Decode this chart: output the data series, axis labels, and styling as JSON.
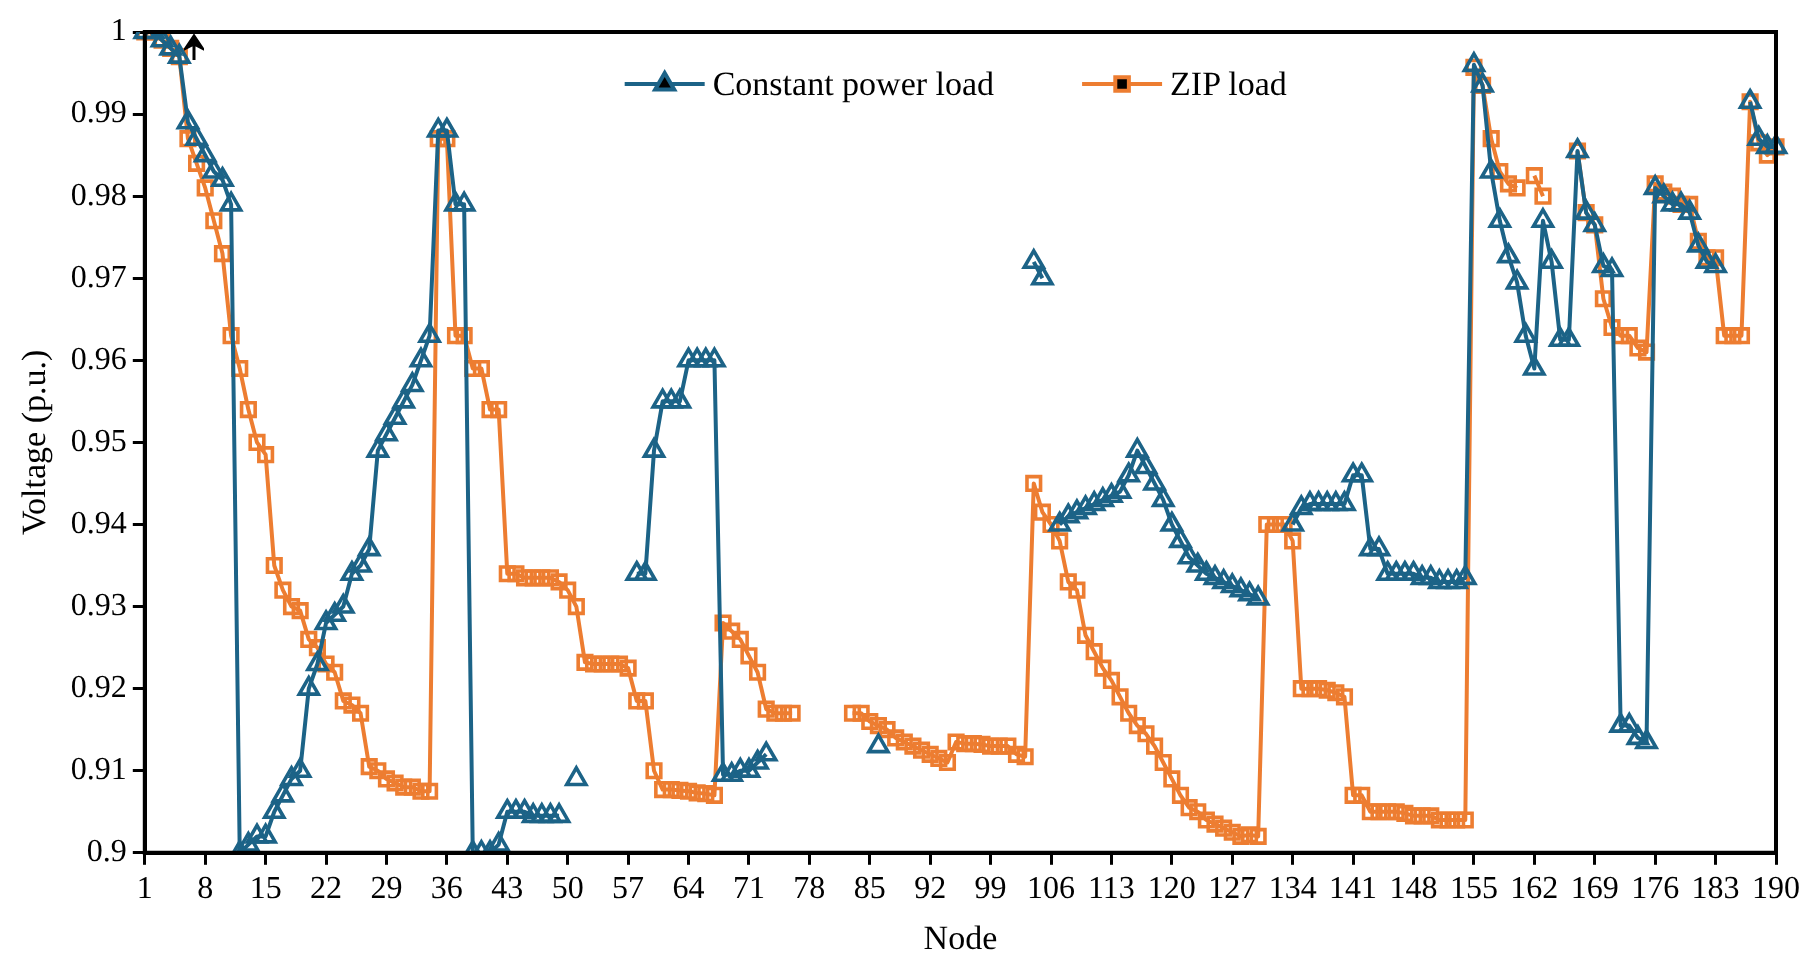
{
  "chart_data": {
    "type": "line",
    "xlabel": "Node",
    "ylabel": "Voltage (p.u.)",
    "categories": [
      "1",
      null,
      null,
      null,
      null,
      null,
      null,
      "8",
      null,
      null,
      null,
      null,
      null,
      null,
      "15",
      null,
      null,
      null,
      null,
      null,
      null,
      "22",
      null,
      null,
      null,
      null,
      null,
      null,
      "29",
      null,
      null,
      null,
      null,
      null,
      null,
      "36",
      null,
      null,
      null,
      null,
      null,
      null,
      "43",
      null,
      null,
      null,
      null,
      null,
      null,
      "50",
      null,
      null,
      null,
      null,
      null,
      null,
      "57",
      null,
      null,
      null,
      null,
      null,
      null,
      "64",
      null,
      null,
      null,
      null,
      null,
      null,
      "71",
      null,
      null,
      null,
      null,
      null,
      null,
      "78",
      null,
      null,
      null,
      null,
      null,
      null,
      "85",
      null,
      null,
      null,
      null,
      null,
      null,
      "92",
      null,
      null,
      null,
      null,
      null,
      null,
      "99",
      null,
      null,
      null,
      null,
      null,
      null,
      "106",
      null,
      null,
      null,
      null,
      null,
      null,
      "113",
      null,
      null,
      null,
      null,
      null,
      null,
      "120",
      null,
      null,
      null,
      null,
      null,
      null,
      "127",
      null,
      null,
      null,
      null,
      null,
      null,
      "134",
      null,
      null,
      null,
      null,
      null,
      null,
      "141",
      null,
      null,
      null,
      null,
      null,
      null,
      "148",
      null,
      null,
      null,
      null,
      null,
      null,
      "155",
      null,
      null,
      null,
      null,
      null,
      null,
      "162",
      null,
      null,
      null,
      null,
      null,
      null,
      "169",
      null,
      null,
      null,
      null,
      null,
      null,
      "176",
      null,
      null,
      null,
      null,
      null,
      null,
      "183",
      null,
      null,
      null,
      null,
      null,
      null,
      "190"
    ],
    "series": [
      {
        "name": "Constant power load",
        "color": "#1c6387",
        "marker": "triangle",
        "values": [
          1.0,
          1.0,
          0.999,
          0.998,
          0.997,
          0.989,
          0.987,
          0.985,
          0.983,
          0.982,
          0.979,
          0.9,
          0.901,
          0.902,
          0.902,
          0.905,
          0.907,
          0.909,
          0.91,
          0.92,
          0.923,
          0.928,
          0.929,
          0.93,
          0.934,
          0.935,
          0.937,
          0.949,
          0.951,
          0.953,
          0.955,
          0.957,
          0.96,
          0.963,
          0.988,
          0.988,
          0.979,
          0.979,
          0.9,
          0.9,
          0.9,
          0.901,
          0.905,
          0.905,
          0.905,
          0.9045,
          0.9045,
          0.9045,
          0.9045,
          null,
          0.909,
          null,
          null,
          null,
          null,
          null,
          null,
          0.934,
          0.934,
          0.949,
          0.955,
          0.955,
          0.955,
          0.96,
          0.96,
          0.96,
          0.96,
          0.9095,
          0.9095,
          0.91,
          0.91,
          0.911,
          0.912,
          null,
          null,
          null,
          null,
          null,
          null,
          null,
          null,
          null,
          null,
          null,
          null,
          0.913,
          null,
          null,
          null,
          null,
          null,
          null,
          null,
          null,
          null,
          null,
          null,
          null,
          null,
          null,
          null,
          null,
          null,
          0.972,
          0.97,
          null,
          0.94,
          0.941,
          0.9415,
          0.942,
          0.9425,
          0.943,
          0.9435,
          0.944,
          0.946,
          0.949,
          0.947,
          0.945,
          0.943,
          0.94,
          0.938,
          0.936,
          0.935,
          0.934,
          0.9335,
          0.933,
          0.9325,
          0.932,
          0.9315,
          0.931,
          null,
          null,
          null,
          0.94,
          0.942,
          0.9425,
          0.9425,
          0.9425,
          0.9425,
          0.9425,
          0.946,
          0.946,
          0.937,
          0.937,
          0.934,
          0.934,
          0.934,
          0.934,
          0.9335,
          0.9335,
          0.933,
          0.933,
          0.933,
          0.9335,
          0.996,
          0.9935,
          0.983,
          0.977,
          0.9727,
          0.9695,
          0.963,
          0.959,
          0.977,
          0.972,
          0.9625,
          0.9625,
          0.9855,
          0.978,
          0.9765,
          0.9715,
          0.971,
          0.9155,
          0.9155,
          0.914,
          0.9135,
          0.981,
          0.98,
          0.979,
          0.979,
          0.978,
          0.974,
          0.972,
          0.9715,
          null,
          null,
          null,
          0.9915,
          0.987,
          0.986,
          0.986
        ]
      },
      {
        "name": "ZIP load",
        "color": "#ed7d31",
        "marker": "square",
        "values": [
          1.0,
          1.0,
          0.999,
          0.998,
          0.997,
          0.987,
          0.984,
          0.981,
          0.977,
          0.973,
          0.963,
          0.959,
          0.954,
          0.95,
          0.9485,
          0.935,
          0.932,
          0.93,
          0.9295,
          0.926,
          0.925,
          0.923,
          0.922,
          0.9185,
          0.918,
          0.917,
          0.9105,
          0.91,
          0.909,
          0.9085,
          0.908,
          0.908,
          0.9075,
          0.9075,
          0.987,
          0.987,
          0.963,
          0.963,
          0.959,
          0.959,
          0.954,
          0.954,
          0.934,
          0.934,
          0.9335,
          0.9335,
          0.9335,
          0.9335,
          0.933,
          0.932,
          0.93,
          0.9232,
          0.923,
          0.923,
          0.923,
          0.923,
          0.9225,
          0.9185,
          0.9185,
          0.91,
          0.9077,
          0.9077,
          0.9076,
          0.9075,
          0.9073,
          0.9072,
          0.907,
          0.928,
          0.927,
          0.926,
          0.924,
          0.922,
          0.9175,
          0.917,
          0.917,
          0.917,
          null,
          null,
          null,
          null,
          null,
          null,
          0.917,
          0.917,
          0.916,
          0.9155,
          0.915,
          0.914,
          0.9135,
          0.913,
          0.9125,
          0.912,
          0.9115,
          0.911,
          0.9135,
          0.9133,
          0.9133,
          0.9132,
          0.913,
          0.913,
          0.913,
          0.912,
          0.9117,
          0.945,
          0.9415,
          0.94,
          0.938,
          0.933,
          0.932,
          0.9265,
          0.9245,
          0.9225,
          0.921,
          0.919,
          0.917,
          0.9155,
          0.9145,
          0.913,
          0.911,
          0.909,
          0.907,
          0.9055,
          0.905,
          0.904,
          0.9035,
          0.903,
          0.9025,
          0.902,
          0.9022,
          0.902,
          0.94,
          0.94,
          0.94,
          0.938,
          0.92,
          0.92,
          0.92,
          0.9198,
          0.9195,
          0.919,
          0.907,
          0.907,
          0.905,
          0.905,
          0.905,
          0.905,
          0.9048,
          0.9045,
          0.9045,
          0.9045,
          0.904,
          0.904,
          0.904,
          0.904,
          0.9957,
          0.9935,
          0.987,
          0.983,
          0.9815,
          0.981,
          null,
          0.9825,
          0.98,
          null,
          null,
          null,
          0.9855,
          0.978,
          0.9765,
          0.9675,
          0.964,
          0.963,
          0.963,
          0.9615,
          0.961,
          0.9815,
          0.9805,
          0.98,
          0.979,
          0.979,
          0.9745,
          0.9725,
          0.9725,
          0.963,
          0.963,
          0.963,
          0.9915,
          0.9865,
          0.985,
          0.986
        ]
      }
    ],
    "ylim": [
      0.9,
      1
    ],
    "yticks": [
      0.9,
      0.91,
      0.92,
      0.93,
      0.94,
      0.95,
      0.96,
      0.97,
      0.98,
      0.99,
      1
    ],
    "legend": "top",
    "grid": false
  }
}
